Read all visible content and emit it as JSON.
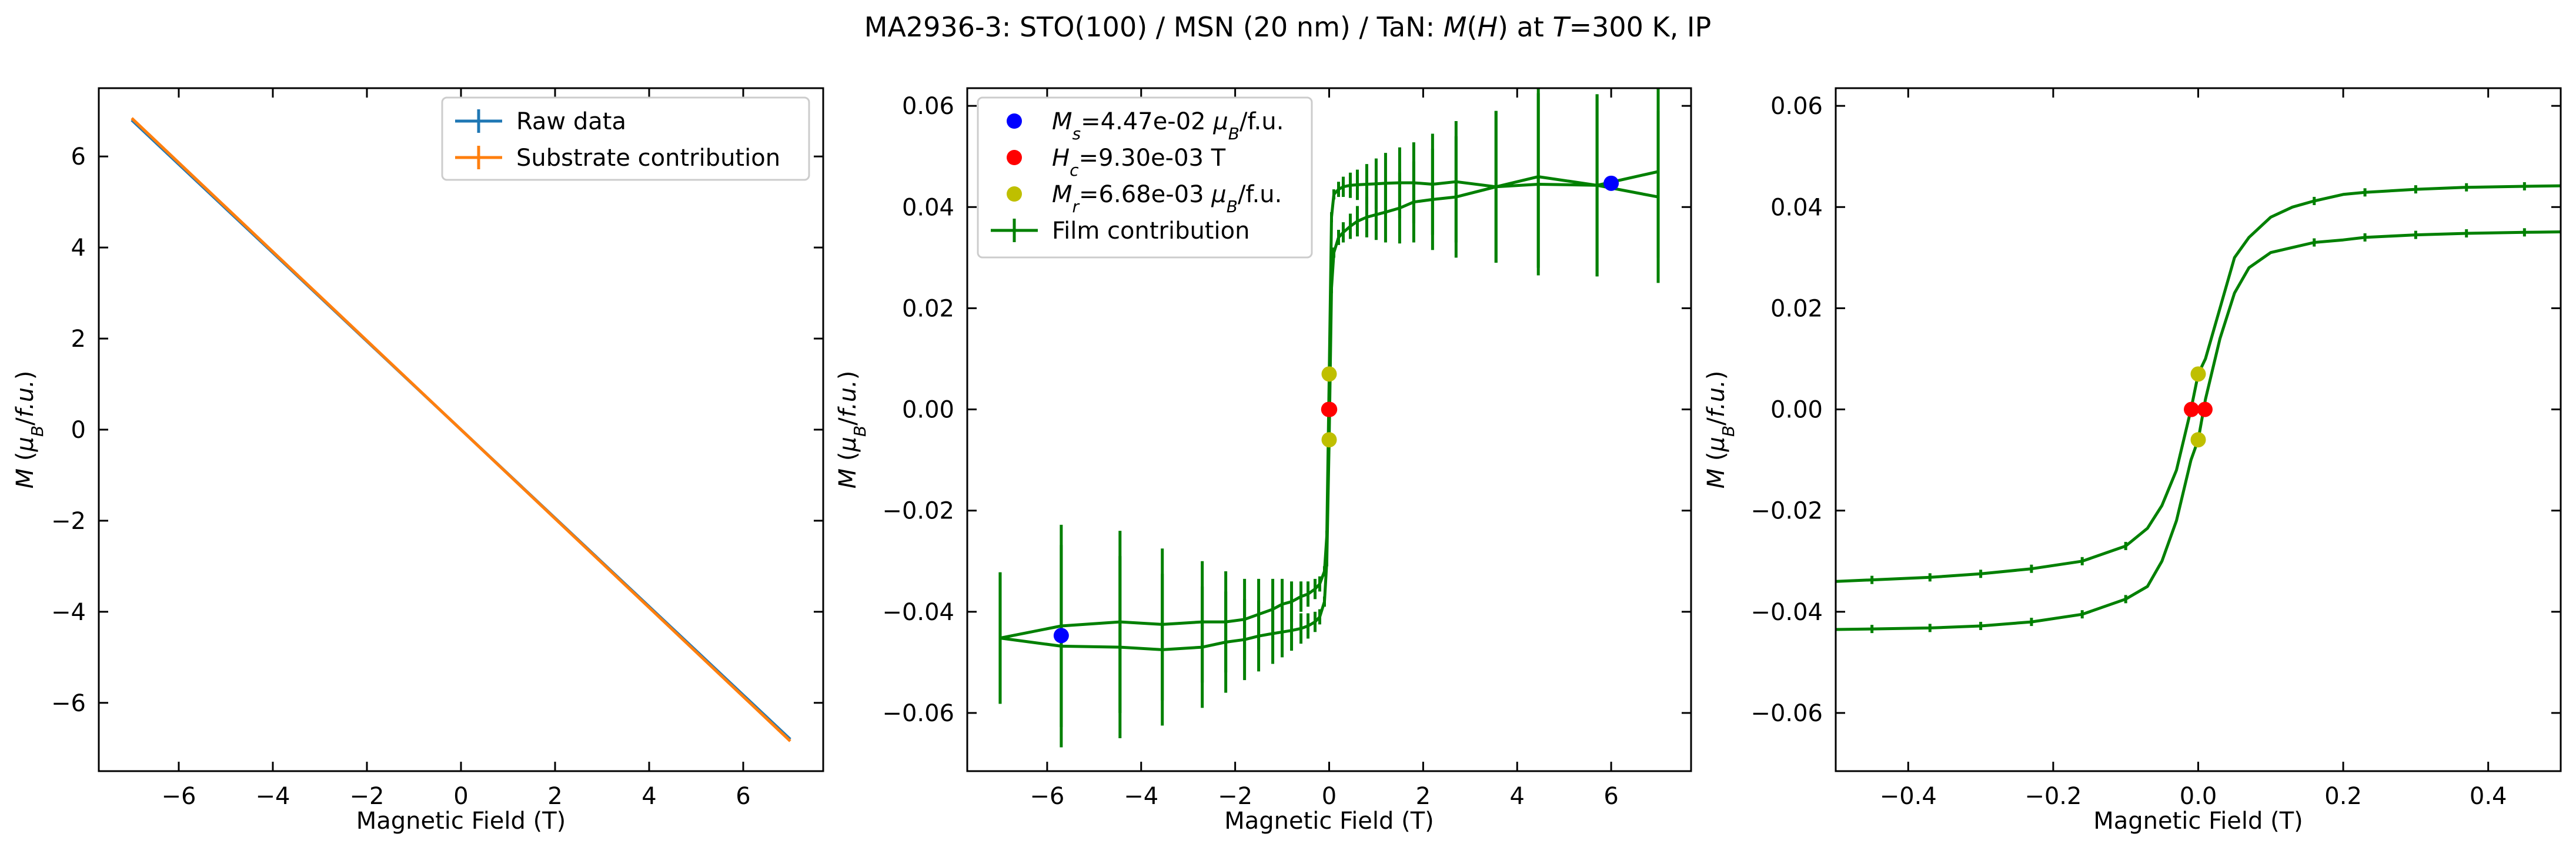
{
  "figure": {
    "title_parts": [
      {
        "t": "MA2936-3: STO(100)  / MSN (20 nm) / TaN: ",
        "i": false
      },
      {
        "t": "M",
        "i": true
      },
      {
        "t": "(",
        "i": false
      },
      {
        "t": "H",
        "i": true
      },
      {
        "t": ") at ",
        "i": false
      },
      {
        "t": "T",
        "i": true
      },
      {
        "t": "=300 K, IP",
        "i": false
      }
    ]
  },
  "colors": {
    "raw": "#1f77b4",
    "substrate": "#ff7f0e",
    "film": "#008000",
    "ms": "#0000ff",
    "hc": "#ff0000",
    "mr": "#bfbf00"
  },
  "chart_data": [
    {
      "type": "line",
      "xlabel": "Magnetic Field (T)",
      "ylabel_parts": [
        {
          "t": "M",
          "i": true
        },
        {
          "t": " (",
          "i": false
        },
        {
          "t": "μ",
          "i": true
        },
        {
          "t": "B",
          "i": true,
          "sub": true
        },
        {
          "t": "/",
          "i": false
        },
        {
          "t": "f.u.",
          "i": true
        },
        {
          "t": ")",
          "i": false
        }
      ],
      "xlim": [
        -7.7,
        7.7
      ],
      "ylim": [
        -7.5,
        7.5
      ],
      "xticks": [
        -6,
        -4,
        -2,
        0,
        2,
        4,
        6
      ],
      "xtick_labels": [
        "−6",
        "−4",
        "−2",
        "0",
        "2",
        "4",
        "6"
      ],
      "yticks": [
        -6,
        -4,
        -2,
        0,
        2,
        4,
        6
      ],
      "ytick_labels": [
        "−6",
        "−4",
        "−2",
        "0",
        "2",
        "4",
        "6"
      ],
      "legend_position": "upper right",
      "series": [
        {
          "name": "Raw data",
          "color_key": "raw",
          "x": [
            -7,
            -3.5,
            0,
            3.5,
            7
          ],
          "y": [
            6.8,
            3.4,
            0.0,
            -3.4,
            -6.8
          ]
        },
        {
          "name": "Substrate contribution",
          "color_key": "substrate",
          "x": [
            -7,
            -3.5,
            0,
            3.5,
            7
          ],
          "y": [
            6.84,
            3.42,
            0.0,
            -3.42,
            -6.84
          ]
        }
      ]
    },
    {
      "type": "line",
      "xlabel": "Magnetic Field (T)",
      "ylabel_parts": [
        {
          "t": "M",
          "i": true
        },
        {
          "t": " (",
          "i": false
        },
        {
          "t": "μ",
          "i": true
        },
        {
          "t": "B",
          "i": true,
          "sub": true
        },
        {
          "t": "/",
          "i": false
        },
        {
          "t": "f.u.",
          "i": true
        },
        {
          "t": ")",
          "i": false
        }
      ],
      "xlim": [
        -7.7,
        7.7
      ],
      "ylim": [
        -0.0715,
        0.0635
      ],
      "xticks": [
        -6,
        -4,
        -2,
        0,
        2,
        4,
        6
      ],
      "xtick_labels": [
        "−6",
        "−4",
        "−2",
        "0",
        "2",
        "4",
        "6"
      ],
      "yticks": [
        -0.06,
        -0.04,
        -0.02,
        0.0,
        0.02,
        0.04,
        0.06
      ],
      "ytick_labels": [
        "−0.06",
        "−0.04",
        "−0.02",
        "0.00",
        "0.02",
        "0.04",
        "0.06"
      ],
      "legend_position": "upper left",
      "legend": [
        {
          "kind": "marker",
          "color_key": "ms",
          "parts": [
            {
              "t": "M",
              "i": true
            },
            {
              "t": "s",
              "i": true,
              "sub": true
            },
            {
              "t": "=4.47e-02 ",
              "i": false
            },
            {
              "t": "μ",
              "i": true
            },
            {
              "t": "B",
              "i": true,
              "sub": true
            },
            {
              "t": "/f.u.",
              "i": false
            }
          ]
        },
        {
          "kind": "marker",
          "color_key": "hc",
          "parts": [
            {
              "t": "H",
              "i": true
            },
            {
              "t": "c",
              "i": true,
              "sub": true
            },
            {
              "t": "=9.30e-03 T",
              "i": false
            }
          ]
        },
        {
          "kind": "marker",
          "color_key": "mr",
          "parts": [
            {
              "t": "M",
              "i": true
            },
            {
              "t": "r",
              "i": true,
              "sub": true
            },
            {
              "t": "=6.68e-03 ",
              "i": false
            },
            {
              "t": "μ",
              "i": true
            },
            {
              "t": "B",
              "i": true,
              "sub": true
            },
            {
              "t": "/f.u.",
              "i": false
            }
          ]
        },
        {
          "kind": "errorline",
          "color_key": "film",
          "parts": [
            {
              "t": "Film contribution",
              "i": false
            }
          ]
        }
      ],
      "series": [
        {
          "name": "Film contribution",
          "color_key": "film",
          "x": [
            -7.0,
            -5.7,
            -4.45,
            -3.55,
            -2.7,
            -2.2,
            -1.8,
            -1.5,
            -1.2,
            -1.0,
            -0.8,
            -0.6,
            -0.45,
            -0.3,
            -0.2,
            -0.1,
            -0.05,
            0.0,
            0.05,
            0.1,
            0.2,
            0.3,
            0.45,
            0.6,
            0.8,
            1.0,
            1.2,
            1.5,
            1.8,
            2.2,
            2.7,
            3.55,
            4.45,
            5.7,
            7.0
          ],
          "y": [
            -0.0452,
            -0.0468,
            -0.047,
            -0.0475,
            -0.047,
            -0.046,
            -0.0455,
            -0.0448,
            -0.0443,
            -0.044,
            -0.0437,
            -0.0433,
            -0.0428,
            -0.042,
            -0.041,
            -0.038,
            -0.03,
            -0.006,
            0.024,
            0.031,
            0.034,
            0.035,
            0.0362,
            0.0372,
            0.038,
            0.0385,
            0.039,
            0.0398,
            0.041,
            0.0415,
            0.042,
            0.044,
            0.0445,
            0.0443,
            0.042
          ],
          "err": [
            0.013,
            0.02,
            0.018,
            0.015,
            0.012,
            0.01,
            0.008,
            0.007,
            0.006,
            0.005,
            0.004,
            0.003,
            0.0025,
            0.002,
            0.0015,
            0.001,
            0.001,
            0.001,
            0.001,
            0.001,
            0.0015,
            0.002,
            0.0025,
            0.003,
            0.004,
            0.005,
            0.006,
            0.007,
            0.008,
            0.01,
            0.012,
            0.015,
            0.018,
            0.018,
            0.017
          ],
          "x2": [
            7.0,
            5.7,
            4.45,
            3.55,
            2.7,
            2.2,
            1.8,
            1.5,
            1.2,
            1.0,
            0.8,
            0.6,
            0.45,
            0.3,
            0.2,
            0.1,
            0.05,
            0.0,
            -0.05,
            -0.1,
            -0.2,
            -0.3,
            -0.45,
            -0.6,
            -0.8,
            -1.0,
            -1.2,
            -1.5,
            -1.8,
            -2.2,
            -2.7,
            -3.55,
            -4.45,
            -5.7,
            -7.0
          ],
          "y2": [
            0.047,
            0.0443,
            0.046,
            0.044,
            0.045,
            0.0445,
            0.0448,
            0.0448,
            0.0447,
            0.0446,
            0.0445,
            0.0444,
            0.0443,
            0.044,
            0.0435,
            0.0425,
            0.038,
            0.006,
            -0.025,
            -0.032,
            -0.0345,
            -0.0355,
            -0.0365,
            -0.037,
            -0.038,
            -0.0385,
            -0.0395,
            -0.0405,
            -0.0415,
            -0.042,
            -0.042,
            -0.0425,
            -0.042,
            -0.0428,
            -0.0452
          ],
          "err2": [
            0.017,
            0.018,
            0.018,
            0.015,
            0.012,
            0.01,
            0.008,
            0.007,
            0.006,
            0.005,
            0.004,
            0.003,
            0.0025,
            0.002,
            0.0015,
            0.001,
            0.001,
            0.001,
            0.001,
            0.001,
            0.0015,
            0.002,
            0.0025,
            0.003,
            0.004,
            0.005,
            0.006,
            0.007,
            0.008,
            0.01,
            0.012,
            0.015,
            0.018,
            0.02,
            0.013
          ]
        }
      ],
      "points": [
        {
          "label": "Ms",
          "color_key": "ms",
          "x": -5.7,
          "y": -0.0447
        },
        {
          "label": "Ms",
          "color_key": "ms",
          "x": 6.0,
          "y": 0.0447
        },
        {
          "label": "Hc",
          "color_key": "hc",
          "x": -0.0093,
          "y": 0.0
        },
        {
          "label": "Hc",
          "color_key": "hc",
          "x": 0.0093,
          "y": 0.0
        },
        {
          "label": "Mr",
          "color_key": "mr",
          "x": 0.0,
          "y": 0.007
        },
        {
          "label": "Mr",
          "color_key": "mr",
          "x": 0.0,
          "y": -0.006
        }
      ]
    },
    {
      "type": "line",
      "xlabel": "Magnetic Field (T)",
      "ylabel_parts": [
        {
          "t": "M",
          "i": true
        },
        {
          "t": " (",
          "i": false
        },
        {
          "t": "μ",
          "i": true
        },
        {
          "t": "B",
          "i": true,
          "sub": true
        },
        {
          "t": "/",
          "i": false
        },
        {
          "t": "f.u.",
          "i": true
        },
        {
          "t": ")",
          "i": false
        }
      ],
      "xlim": [
        -0.5,
        0.5
      ],
      "ylim": [
        -0.0715,
        0.0635
      ],
      "xticks": [
        -0.4,
        -0.2,
        0.0,
        0.2,
        0.4
      ],
      "xtick_labels": [
        "−0.4",
        "−0.2",
        "0.0",
        "0.2",
        "0.4"
      ],
      "yticks": [
        -0.06,
        -0.04,
        -0.02,
        0.0,
        0.02,
        0.04,
        0.06
      ],
      "ytick_labels": [
        "−0.06",
        "−0.04",
        "−0.02",
        "0.00",
        "0.02",
        "0.04",
        "0.06"
      ],
      "series": [
        {
          "name": "Film contribution",
          "color_key": "film",
          "x": [
            -0.5,
            -0.45,
            -0.37,
            -0.3,
            -0.23,
            -0.16,
            -0.1,
            -0.07,
            -0.05,
            -0.03,
            -0.01,
            0.0,
            0.01,
            0.03,
            0.05,
            0.07,
            0.1,
            0.13,
            0.16,
            0.2,
            0.23,
            0.3,
            0.37,
            0.45,
            0.5
          ],
          "y": [
            -0.0435,
            -0.0434,
            -0.0432,
            -0.0428,
            -0.042,
            -0.0405,
            -0.0375,
            -0.035,
            -0.03,
            -0.022,
            -0.01,
            -0.006,
            0.002,
            0.014,
            0.023,
            0.028,
            0.031,
            0.032,
            0.033,
            0.0335,
            0.034,
            0.0345,
            0.0348,
            0.035,
            0.0351
          ],
          "x2": [
            0.5,
            0.45,
            0.37,
            0.3,
            0.23,
            0.2,
            0.16,
            0.13,
            0.1,
            0.07,
            0.05,
            0.03,
            0.01,
            0.0,
            -0.01,
            -0.03,
            -0.05,
            -0.07,
            -0.1,
            -0.16,
            -0.23,
            -0.3,
            -0.37,
            -0.45,
            -0.5
          ],
          "y2": [
            0.0442,
            0.0441,
            0.0439,
            0.0435,
            0.0429,
            0.0425,
            0.0412,
            0.04,
            0.038,
            0.034,
            0.03,
            0.02,
            0.01,
            0.007,
            0.0,
            -0.012,
            -0.019,
            -0.0235,
            -0.027,
            -0.03,
            -0.0315,
            -0.0325,
            -0.0332,
            -0.0337,
            -0.034
          ],
          "tick_x": [
            -0.45,
            -0.37,
            -0.3,
            -0.23,
            -0.16,
            -0.1,
            0.16,
            0.23,
            0.3,
            0.37,
            0.45
          ]
        }
      ],
      "points": [
        {
          "label": "Hc",
          "color_key": "hc",
          "x": -0.0093,
          "y": 0.0
        },
        {
          "label": "Hc",
          "color_key": "hc",
          "x": 0.0093,
          "y": 0.0
        },
        {
          "label": "Mr",
          "color_key": "mr",
          "x": 0.0,
          "y": 0.007
        },
        {
          "label": "Mr",
          "color_key": "mr",
          "x": 0.0,
          "y": -0.006
        }
      ]
    }
  ]
}
